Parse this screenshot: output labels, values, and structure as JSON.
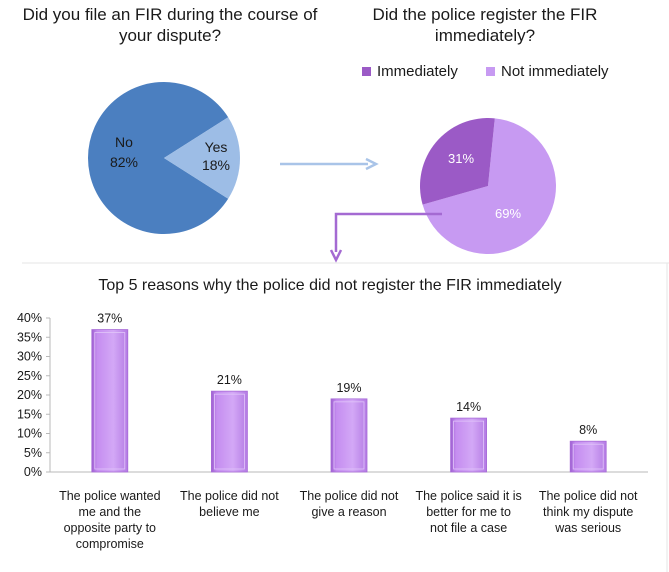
{
  "chart_data": [
    {
      "type": "pie",
      "title": "Did you file an FIR during the course of your dispute?",
      "slices": [
        {
          "label": "No",
          "value": 82,
          "value_label": "82%",
          "color": "#4b7fc0"
        },
        {
          "label": "Yes",
          "value": 18,
          "value_label": "18%",
          "color": "#9dbde6"
        }
      ]
    },
    {
      "type": "pie",
      "title": "Did the police register the FIR immediately?",
      "legend": "top",
      "slices": [
        {
          "label": "Immediately",
          "value": 31,
          "value_label": "31%",
          "color": "#9b5ac6"
        },
        {
          "label": "Not immediately",
          "value": 69,
          "value_label": "69%",
          "color": "#c79af2"
        }
      ]
    },
    {
      "type": "bar",
      "title": "Top 5 reasons why the police did not register the FIR immediately",
      "categories": [
        "The police wanted me and the opposite party to compromise",
        "The police did not believe me",
        "The police did not give a reason",
        "The police said it is better for me to not file a case",
        "The police did not think my dispute was serious"
      ],
      "category_lines": [
        [
          "The police wanted",
          "me and the",
          "opposite party to",
          "compromise"
        ],
        [
          "The police did not",
          "believe me"
        ],
        [
          "The police did not",
          "give a reason"
        ],
        [
          "The police said it is",
          "better for me to",
          "not file a case"
        ],
        [
          "The police did not",
          "think my dispute",
          "was serious"
        ]
      ],
      "values": [
        37,
        21,
        19,
        14,
        8
      ],
      "value_labels": [
        "37%",
        "21%",
        "19%",
        "14%",
        "8%"
      ],
      "yticks": [
        "0%",
        "5%",
        "10%",
        "15%",
        "20%",
        "25%",
        "30%",
        "35%",
        "40%"
      ],
      "ylim": [
        0,
        40
      ],
      "grid": false,
      "bar_color": "#c187ee"
    }
  ]
}
